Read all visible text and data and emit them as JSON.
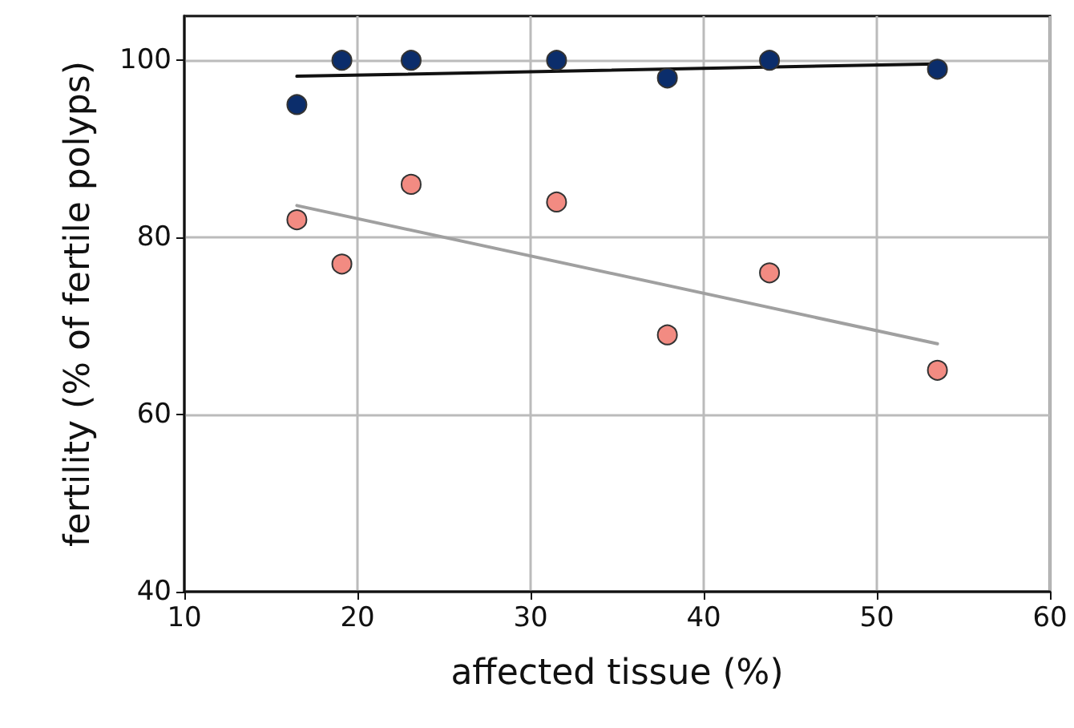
{
  "chart_data": {
    "type": "scatter",
    "xlabel": "affected tissue (%)",
    "ylabel": "fertility (% of fertile polyps)",
    "xlim": [
      10,
      60
    ],
    "xticks": [
      10,
      20,
      30,
      40,
      50,
      60
    ],
    "ylim": [
      40,
      105
    ],
    "yticks": [
      40,
      60,
      80,
      100
    ],
    "grid": true,
    "marker": "circle",
    "series": [
      {
        "color": "#0b2d6b",
        "x": [
          16.5,
          19.1,
          23.1,
          31.5,
          37.9,
          43.8,
          53.5
        ],
        "values": [
          95,
          100,
          100,
          100,
          98,
          100,
          99
        ]
      },
      {
        "color": "#f28b82",
        "x": [
          16.5,
          19.1,
          23.1,
          31.5,
          37.9,
          43.8,
          53.5
        ],
        "values": [
          82,
          77,
          86,
          84,
          69,
          76,
          65
        ]
      },
      {
        "type": "line",
        "marker": "none",
        "color": "#111111",
        "x": [
          16.5,
          53.5
        ],
        "values": [
          98.2,
          99.6
        ]
      },
      {
        "type": "line",
        "marker": "none",
        "color": "#a0a0a0",
        "x": [
          16.5,
          53.5
        ],
        "values": [
          83.6,
          68
        ]
      }
    ]
  }
}
